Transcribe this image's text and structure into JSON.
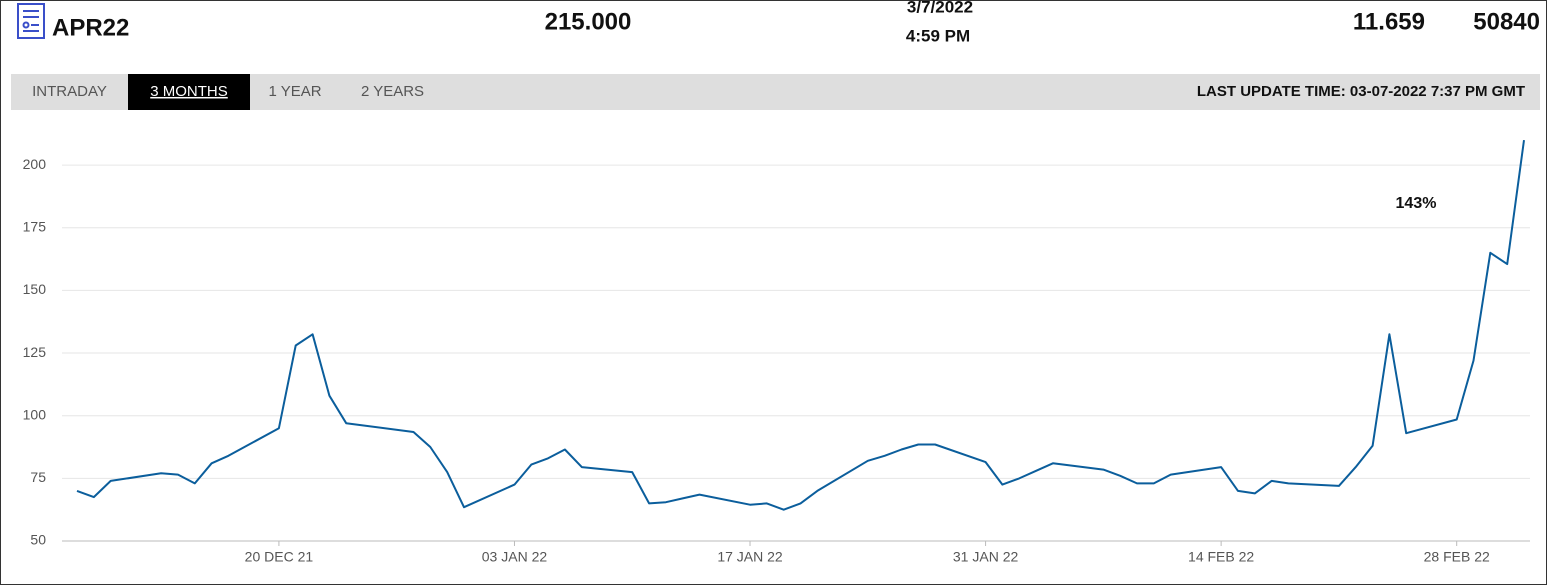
{
  "header": {
    "symbol": "APR22",
    "price": "215.000",
    "date": "3/7/2022",
    "time": "4:59 PM",
    "change": "11.659",
    "volume": "50840"
  },
  "tabs": [
    "INTRADAY",
    "3 MONTHS",
    "1 YEAR",
    "2 YEARS"
  ],
  "active_tab": 1,
  "last_update": "LAST UPDATE TIME: 03-07-2022 7:37 PM GMT",
  "chart_data": {
    "type": "line",
    "color": "#0b5e9c",
    "grid": true,
    "annotation": "143%",
    "x": [
      "2021-12-08",
      "2021-12-09",
      "2021-12-10",
      "2021-12-13",
      "2021-12-14",
      "2021-12-15",
      "2021-12-16",
      "2021-12-17",
      "2021-12-20",
      "2021-12-21",
      "2021-12-22",
      "2021-12-23",
      "2021-12-24",
      "2021-12-28",
      "2021-12-29",
      "2021-12-30",
      "2021-12-31",
      "2022-01-03",
      "2022-01-04",
      "2022-01-05",
      "2022-01-06",
      "2022-01-07",
      "2022-01-10",
      "2022-01-11",
      "2022-01-12",
      "2022-01-13",
      "2022-01-14",
      "2022-01-17",
      "2022-01-18",
      "2022-01-19",
      "2022-01-20",
      "2022-01-21",
      "2022-01-24",
      "2022-01-25",
      "2022-01-26",
      "2022-01-27",
      "2022-01-28",
      "2022-01-31",
      "2022-02-01",
      "2022-02-02",
      "2022-02-03",
      "2022-02-04",
      "2022-02-07",
      "2022-02-08",
      "2022-02-09",
      "2022-02-10",
      "2022-02-11",
      "2022-02-14",
      "2022-02-15",
      "2022-02-16",
      "2022-02-17",
      "2022-02-18",
      "2022-02-21",
      "2022-02-22",
      "2022-02-23",
      "2022-02-24",
      "2022-02-25",
      "2022-02-28",
      "2022-03-01",
      "2022-03-02",
      "2022-03-03",
      "2022-03-04"
    ],
    "values": [
      70,
      67.5,
      74,
      77,
      76.5,
      73,
      81,
      84,
      95,
      128,
      132.5,
      108,
      97,
      93.5,
      87.5,
      77.5,
      63.5,
      72.5,
      80.5,
      83,
      86.5,
      79.5,
      77.5,
      65,
      65.5,
      67,
      68.5,
      64.5,
      65,
      62.5,
      65,
      70,
      82,
      84,
      86.5,
      88.5,
      88.5,
      81.5,
      72.5,
      75,
      78,
      81,
      78.5,
      76,
      73,
      73,
      76.5,
      79.5,
      70,
      69,
      74,
      73,
      72,
      79.5,
      88,
      132.5,
      93,
      98.5,
      122,
      165,
      160.5,
      210
    ],
    "xlim": [
      "2021-12-08",
      "2022-03-04"
    ],
    "xticks": [
      {
        "value": "2021-12-20",
        "label": "20 DEC 21"
      },
      {
        "value": "2022-01-03",
        "label": "03 JAN 22"
      },
      {
        "value": "2022-01-17",
        "label": "17 JAN 22"
      },
      {
        "value": "2022-01-31",
        "label": "31 JAN 22"
      },
      {
        "value": "2022-02-14",
        "label": "14 FEB 22"
      },
      {
        "value": "2022-02-28",
        "label": "28 FEB 22"
      }
    ],
    "ylim": [
      50,
      220
    ],
    "yticks": [
      50,
      75,
      100,
      125,
      150,
      175,
      200
    ]
  }
}
